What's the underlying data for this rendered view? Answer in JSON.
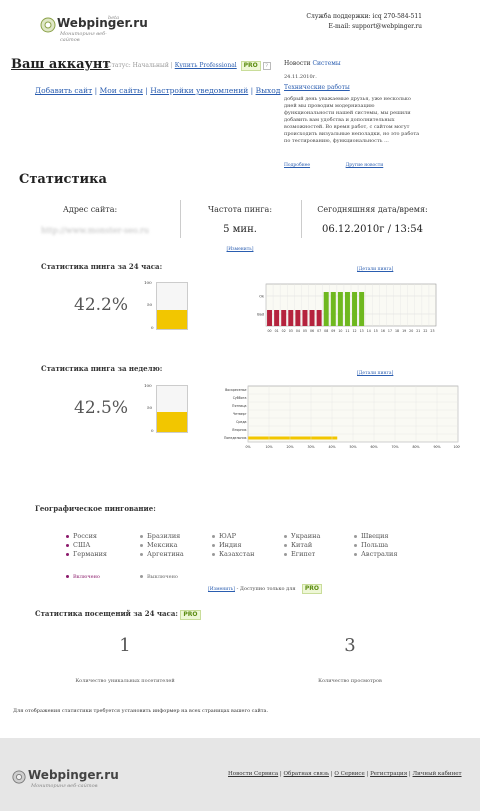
{
  "header": {
    "logo_name": "Webpinger.ru",
    "logo_tagline": "Мониторинг веб-сайтов",
    "logo_beta": "beta",
    "support_line": "Служба поддержки: icq 270-584-511",
    "support_email": "E-mail: support@webpinger.ru"
  },
  "account": {
    "title": "Ваш аккаунт",
    "status_label": "Статус: Начальный",
    "status_sep": "|",
    "buy_link": "Купить Professional",
    "pro_badge": "PRO",
    "help_mark": "?",
    "nav": [
      "Добавить сайт",
      "Мои сайты",
      "Настройки уведомлений",
      "Выход"
    ],
    "nav_sep": "|"
  },
  "news": {
    "heading_prefix": "Новости",
    "heading_link": "Системы",
    "date": "24.11.2010г.",
    "article_title": "Технические работы",
    "body": "добрый день уважаемые друзья, уже несколько дней мы проводим модернизацию функциональности нашей системы, мы решили добавить вам удобства и дополнительных возможностей. Во время работ, с сайтом могут происходить визуальные неполадки, но это работа по тестированию, функциональность ...",
    "more_link": "Подробнее",
    "other_link": "Другие новости"
  },
  "stats": {
    "title": "Статистика",
    "site_label": "Адрес сайта:",
    "site_value": "http://www.monster-seo.ru",
    "ping_freq_label": "Частота пинга:",
    "ping_freq_value": "5 мин.",
    "change_link": "[Изменить]",
    "today_label": "Сегодняшняя дата/время:",
    "today_value": "06.12.2010г / 13:54"
  },
  "daily": {
    "title": "Статистика пинга за 24 часа:",
    "details_link": "[Детали пинга]",
    "percent": "42.2%",
    "gauge_value": 42.2,
    "gauge_ticks": [
      "100",
      "50",
      "0"
    ]
  },
  "weekly": {
    "title": "Статистика пинга за неделю:",
    "details_link": "[Детали пинга]",
    "percent": "42.5%",
    "gauge_value": 42.5,
    "gauge_ticks": [
      "100",
      "50",
      "0"
    ]
  },
  "chart_data": [
    {
      "type": "bar",
      "title": "",
      "y_categories": [
        "Ok",
        "Bad"
      ],
      "categories": [
        "00",
        "01",
        "02",
        "03",
        "04",
        "05",
        "06",
        "07",
        "08",
        "09",
        "10",
        "11",
        "12",
        "13",
        "14",
        "15",
        "16",
        "17",
        "18",
        "19",
        "20",
        "21",
        "22",
        "23"
      ],
      "values": [
        "Bad",
        "Bad",
        "Bad",
        "Bad",
        "Bad",
        "Bad",
        "Bad",
        "Bad",
        "Ok",
        "Ok",
        "Ok",
        "Ok",
        "Ok",
        "Ok",
        "",
        "",
        "",
        "",
        "",
        "",
        "",
        "",
        "",
        ""
      ],
      "colors": {
        "Ok": "#6fb81f",
        "Bad": "#b5233e"
      },
      "grid": true
    },
    {
      "type": "bar",
      "orientation": "horizontal",
      "title": "",
      "categories": [
        "Воскресенье",
        "Суббота",
        "Пятница",
        "Четверг",
        "Среда",
        "Вторник",
        "Понедельник"
      ],
      "values": [
        0,
        0,
        0,
        0,
        0,
        0,
        42.5
      ],
      "x_ticks": [
        "0%",
        "10%",
        "20%",
        "30%",
        "40%",
        "50%",
        "60%",
        "70%",
        "80%",
        "90%",
        "100%"
      ],
      "xlim": [
        0,
        100
      ],
      "colors": {
        "bar": "#f2c600"
      },
      "grid": true
    }
  ],
  "geo": {
    "title": "Географическое пингование:",
    "columns": [
      [
        {
          "name": "Россия",
          "on": true
        },
        {
          "name": "США",
          "on": true
        },
        {
          "name": "Германия",
          "on": true
        }
      ],
      [
        {
          "name": "Бразилия",
          "on": false
        },
        {
          "name": "Мексика",
          "on": false
        },
        {
          "name": "Аргентина",
          "on": false
        }
      ],
      [
        {
          "name": "ЮАР",
          "on": false
        },
        {
          "name": "Индия",
          "on": false
        },
        {
          "name": "Казахстан",
          "on": false
        }
      ],
      [
        {
          "name": "Украина",
          "on": false
        },
        {
          "name": "Китай",
          "on": false
        },
        {
          "name": "Египет",
          "on": false
        }
      ],
      [
        {
          "name": "Швеция",
          "on": false
        },
        {
          "name": "Польша",
          "on": false
        },
        {
          "name": "Австралия",
          "on": false
        }
      ]
    ],
    "legend_on": "Включено",
    "legend_off": "Выключено",
    "change_link": "[Изменить]",
    "pro_note": "- Доступно только для",
    "pro_badge": "PRO"
  },
  "visits": {
    "title": "Статистика посещений за 24 часа:",
    "pro_badge": "PRO",
    "unique_value": "1",
    "unique_label": "Количество уникальных посетителей",
    "views_value": "3",
    "views_label": "Количество просмотров"
  },
  "note": "Для отображения статистики требуется установить информер на всех страницах вашего сайта.",
  "footer": {
    "logo_name": "Webpinger.ru",
    "logo_tagline": "Мониторинг веб-сайтов",
    "links": [
      "Новости Сервиса",
      "Обратная связь",
      "О Сервисе",
      "Регистрация",
      "Личный кабинет"
    ],
    "sep": "|"
  }
}
